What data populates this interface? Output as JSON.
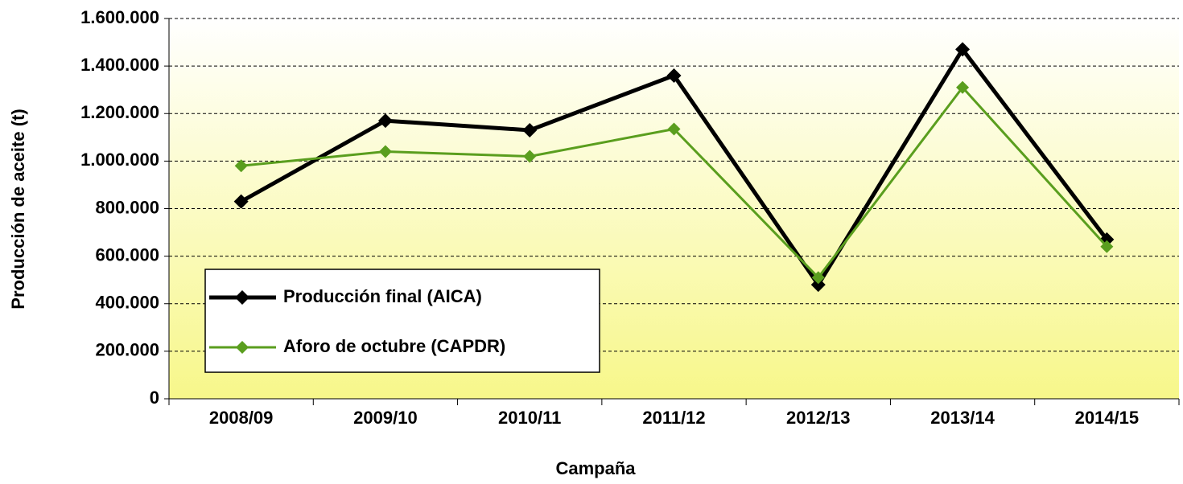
{
  "chart_data": {
    "type": "line",
    "xlabel": "Campaña",
    "ylabel": "Producción de aceite (t)",
    "categories": [
      "2008/09",
      "2009/10",
      "2010/11",
      "2011/12",
      "2012/13",
      "2013/14",
      "2014/15"
    ],
    "series": [
      {
        "name": "Producción final (AICA)",
        "color": "#000000",
        "values": [
          830000,
          1170000,
          1130000,
          1360000,
          480000,
          1470000,
          670000
        ]
      },
      {
        "name": "Aforo de octubre (CAPDR)",
        "color": "#5a9e1e",
        "values": [
          980000,
          1040000,
          1020000,
          1135000,
          510000,
          1310000,
          640000
        ]
      }
    ],
    "ylim": [
      0,
      1600000
    ],
    "yticks": [
      0,
      {
        "value": 200000,
        "label": "200.000"
      },
      {
        "value": 400000,
        "label": "400.000"
      },
      {
        "value": 600000,
        "label": "600.000"
      },
      {
        "value": 800000,
        "label": "800.000"
      },
      {
        "value": 1000000,
        "label": "1.000.000"
      },
      {
        "value": 1200000,
        "label": "1.200.000"
      },
      {
        "value": 1400000,
        "label": "1.400.000"
      },
      {
        "value": 1600000,
        "label": "1.600.000"
      }
    ],
    "grid": true,
    "legend": "lower left"
  }
}
